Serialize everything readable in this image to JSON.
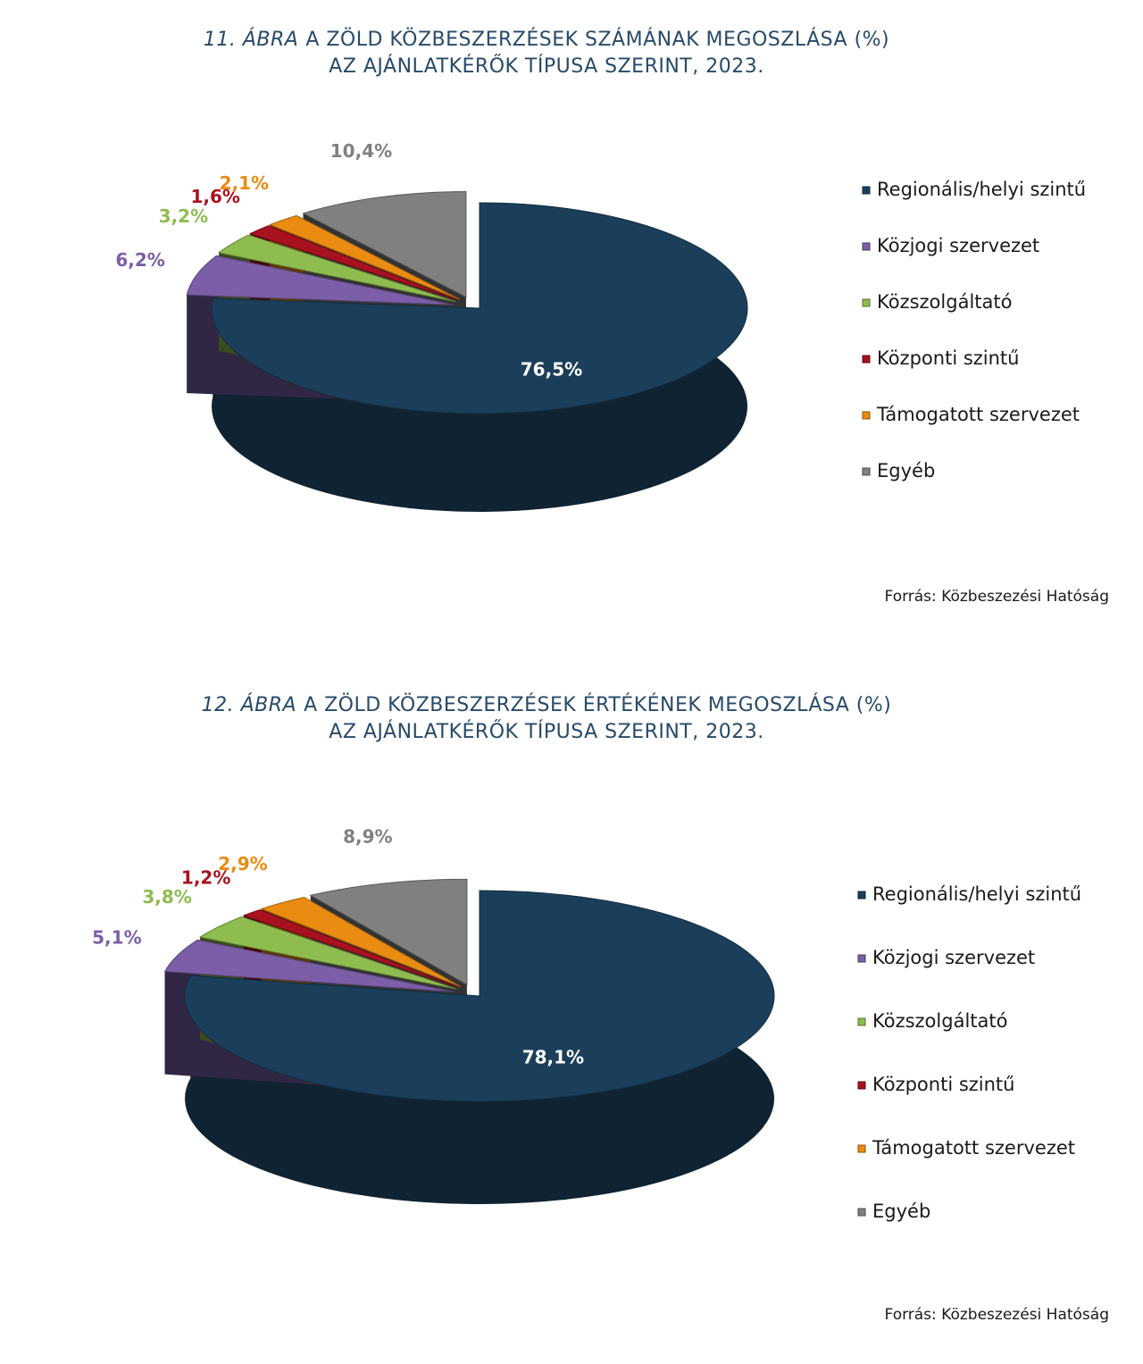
{
  "chart_data": [
    {
      "type": "pie",
      "figure_label": "11. ÁBRA",
      "title": [
        "A ZÖLD KÖZBESZERZÉSEK SZÁMÁNAK MEGOSZLÁSA (%)",
        "AZ AJÁNLATKÉRŐK TÍPUSA SZERINT, 2023."
      ],
      "categories": [
        "Regionális/helyi szintű",
        "Közjogi szervezet",
        "Közszolgáltató",
        "Központi szintű",
        "Támogatott szervezet",
        "Egyéb"
      ],
      "values": [
        76.5,
        6.2,
        3.2,
        1.6,
        2.1,
        10.4
      ],
      "value_labels": [
        "76,5%",
        "6,2%",
        "3,2%",
        "1,6%",
        "2,1%",
        "10,4%"
      ],
      "colors": [
        "#1b3f5a",
        "#7b5ea7",
        "#8fbc4f",
        "#a8121e",
        "#ea8b12",
        "#808080"
      ],
      "source": "Forrás: Közbeszezési Hatóság"
    },
    {
      "type": "pie",
      "figure_label": "12. ÁBRA",
      "title": [
        "A ZÖLD KÖZBESZERZÉSEK ÉRTÉKÉNEK MEGOSZLÁSA (%)",
        "AZ AJÁNLATKÉRŐK TÍPUSA SZERINT, 2023."
      ],
      "categories": [
        "Regionális/helyi szintű",
        "Közjogi szervezet",
        "Közszolgáltató",
        "Központi szintű",
        "Támogatott szervezet",
        "Egyéb"
      ],
      "values": [
        78.1,
        5.1,
        3.8,
        1.2,
        2.9,
        8.9
      ],
      "value_labels": [
        "78,1%",
        "5,1%",
        "3,8%",
        "1,2%",
        "2,9%",
        "8,9%"
      ],
      "colors": [
        "#1b3f5a",
        "#7b5ea7",
        "#8fbc4f",
        "#a8121e",
        "#ea8b12",
        "#808080"
      ],
      "source": "Forrás: Közbeszezési Hatóság"
    }
  ]
}
